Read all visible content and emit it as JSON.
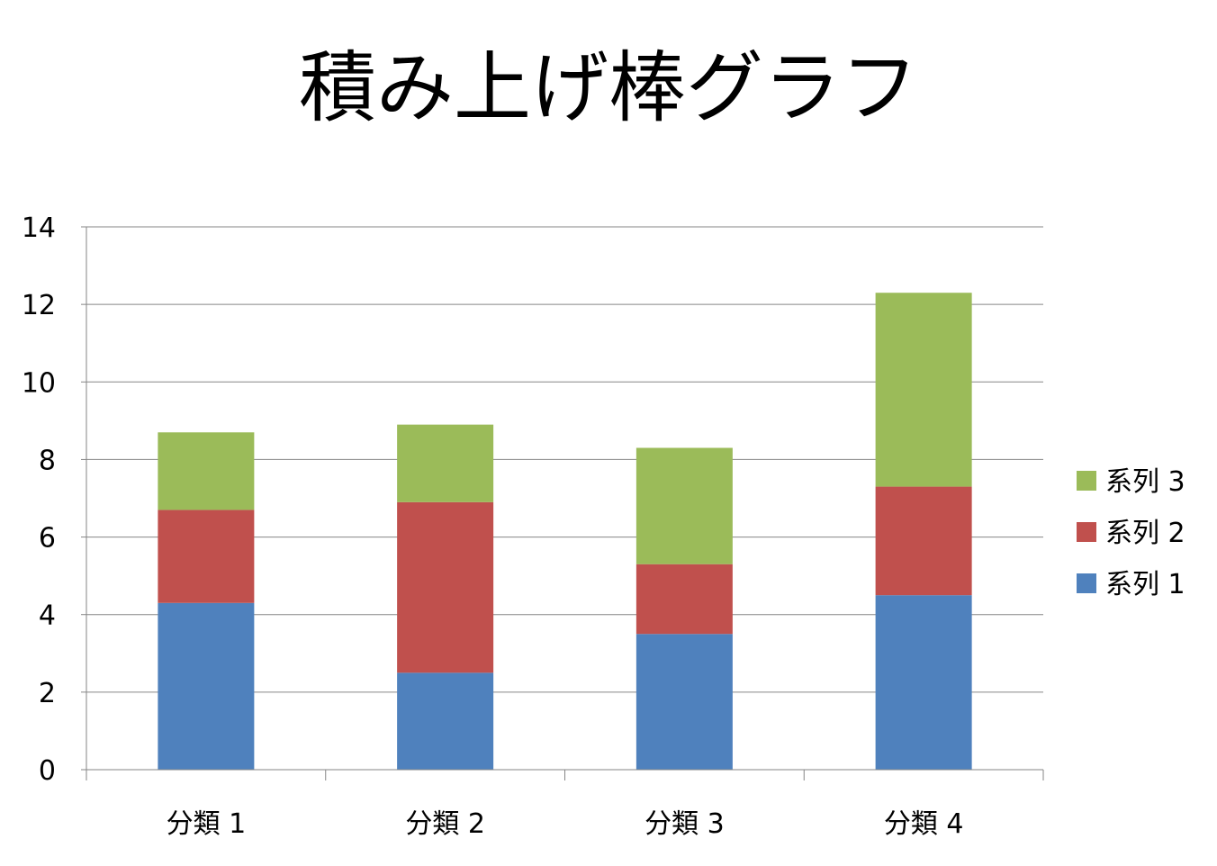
{
  "chart_data": {
    "type": "bar",
    "stacked": true,
    "title": "積み上げ棒グラフ",
    "xlabel": "",
    "ylabel": "",
    "categories": [
      "分類 1",
      "分類 2",
      "分類 3",
      "分類 4"
    ],
    "series": [
      {
        "name": "系列 1",
        "color": "#4F81BD",
        "values": [
          4.3,
          2.5,
          3.5,
          4.5
        ]
      },
      {
        "name": "系列 2",
        "color": "#C0504D",
        "values": [
          2.4,
          4.4,
          1.8,
          2.8
        ]
      },
      {
        "name": "系列 3",
        "color": "#9BBB59",
        "values": [
          2.0,
          2.0,
          3.0,
          5.0
        ]
      }
    ],
    "ylim": [
      0,
      14
    ],
    "yticks": [
      0,
      2,
      4,
      6,
      8,
      10,
      12,
      14
    ],
    "grid": true,
    "legend_position": "right",
    "colors": {
      "gridline": "#868686",
      "axis": "#868686"
    }
  }
}
